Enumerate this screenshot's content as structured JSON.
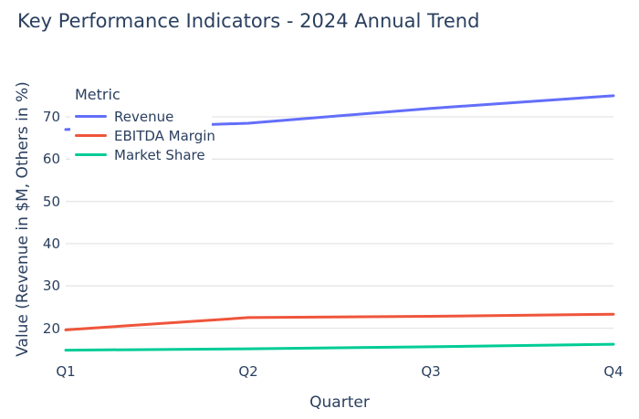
{
  "chart_data": {
    "type": "line",
    "title": "Key Performance Indicators - 2024 Annual Trend",
    "xlabel": "Quarter",
    "ylabel": "Value (Revenue in $M, Others in %)",
    "categories": [
      "Q1",
      "Q2",
      "Q3",
      "Q4"
    ],
    "series": [
      {
        "name": "Revenue",
        "color": "#636EFA",
        "values": [
          67.0,
          68.5,
          72.0,
          75.0
        ]
      },
      {
        "name": "EBITDA Margin",
        "color": "#EF553B",
        "values": [
          19.6,
          22.5,
          22.8,
          23.3
        ]
      },
      {
        "name": "Market Share",
        "color": "#00CC96",
        "values": [
          14.8,
          15.1,
          15.6,
          16.2
        ]
      }
    ],
    "yticks": [
      20,
      30,
      40,
      50,
      60,
      70
    ],
    "ylim": [
      13.2,
      78.6
    ],
    "grid": true,
    "legend": {
      "title": "Metric",
      "position": "inside-top-left"
    },
    "colors": {
      "text": "#2a3f5f",
      "grid": "#e5e5e5",
      "background": "#ffffff"
    }
  }
}
